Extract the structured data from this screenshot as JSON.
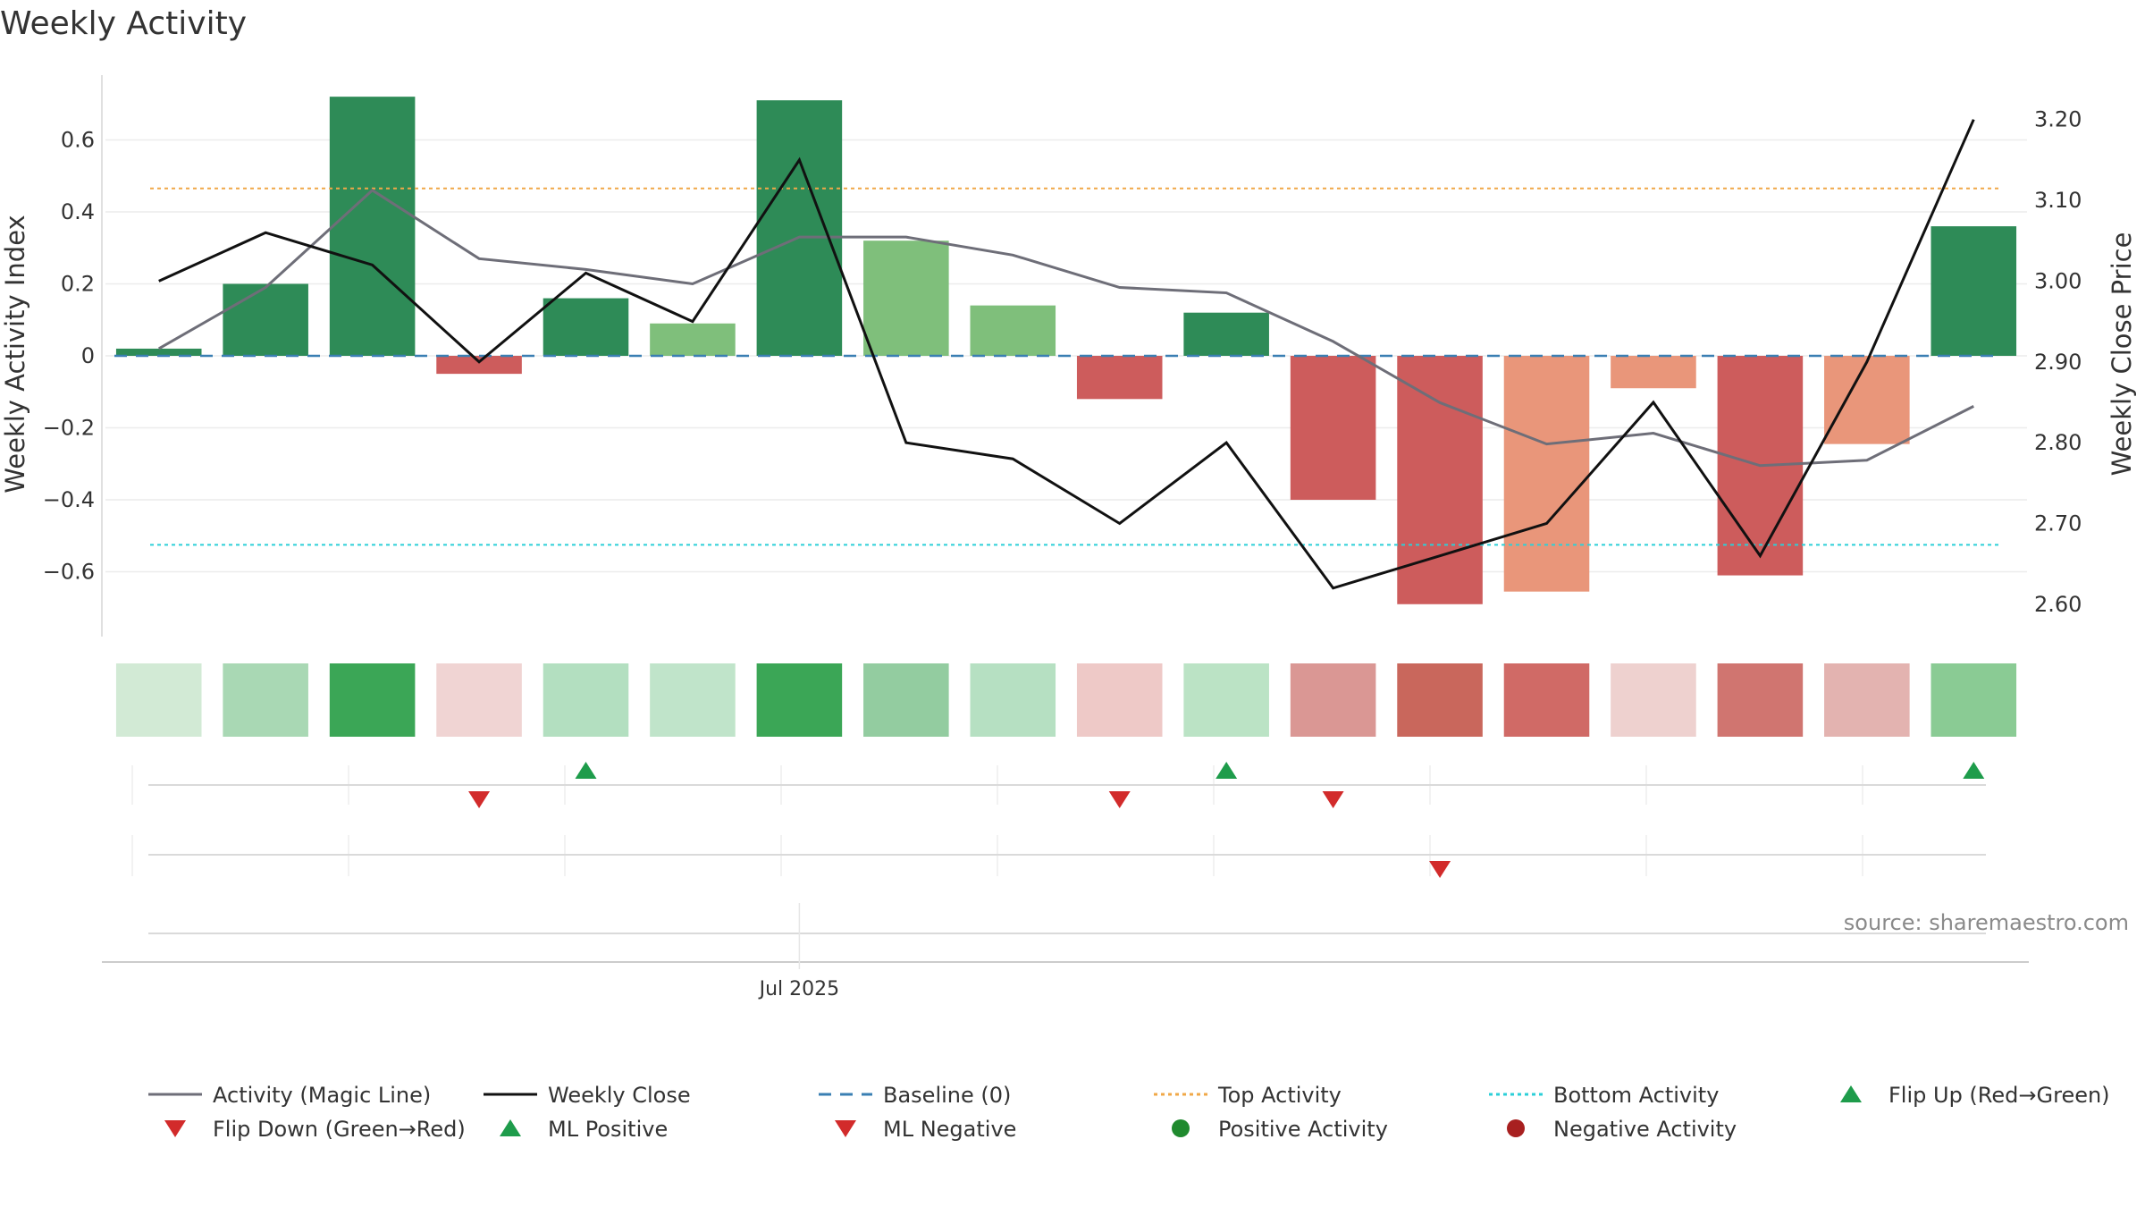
{
  "chart_data": {
    "type": "bar",
    "title": "Weekly Activity",
    "source": "source: sharemaestro.com",
    "ylabel_left": "Weekly Activity Index",
    "ylabel_right": "Weekly Close Price",
    "x_tick_label": "Jul 2025",
    "x_tick_index": 6.5,
    "ylim_left": [
      -0.78,
      0.78
    ],
    "ylim_right": [
      2.56,
      3.255
    ],
    "yticks_left": [
      {
        "v": 0.6,
        "label": "0.6"
      },
      {
        "v": 0.4,
        "label": "0.4"
      },
      {
        "v": 0.2,
        "label": "0.2"
      },
      {
        "v": 0,
        "label": "0"
      },
      {
        "v": -0.2,
        "label": "−0.2"
      },
      {
        "v": -0.4,
        "label": "−0.4"
      },
      {
        "v": -0.6,
        "label": "−0.6"
      }
    ],
    "yticks_right": [
      {
        "v": 3.2,
        "label": "3.20"
      },
      {
        "v": 3.1,
        "label": "3.10"
      },
      {
        "v": 3.0,
        "label": "3.00"
      },
      {
        "v": 2.9,
        "label": "2.90"
      },
      {
        "v": 2.8,
        "label": "2.80"
      },
      {
        "v": 2.7,
        "label": "2.70"
      },
      {
        "v": 2.6,
        "label": "2.60"
      }
    ],
    "activity": [
      0.02,
      0.2,
      0.72,
      -0.05,
      0.16,
      0.09,
      0.71,
      0.32,
      0.14,
      -0.12,
      0.12,
      -0.4,
      -0.69,
      -0.655,
      -0.09,
      -0.61,
      -0.245,
      0.36
    ],
    "bar_colors": [
      "#2e8b57",
      "#2e8b57",
      "#2e8b57",
      "#cd5c5c",
      "#2e8b57",
      "#7fbf7b",
      "#2e8b57",
      "#7fbf7b",
      "#7fbf7b",
      "#cd5c5c",
      "#2e8b57",
      "#cd5c5c",
      "#cd5c5c",
      "#e9967a",
      "#e9967a",
      "#cd5c5c",
      "#e9967a",
      "#2e8b57"
    ],
    "magic_line": [
      0.02,
      0.19,
      0.46,
      0.27,
      0.24,
      0.2,
      0.33,
      0.33,
      0.28,
      0.19,
      0.175,
      0.04,
      -0.13,
      -0.245,
      -0.215,
      -0.305,
      -0.29,
      -0.14
    ],
    "weekly_close": [
      3.0,
      3.06,
      3.02,
      2.9,
      3.01,
      2.95,
      3.15,
      2.8,
      2.78,
      2.7,
      2.8,
      2.62,
      2.66,
      2.7,
      2.85,
      2.66,
      2.9,
      3.2
    ],
    "baseline": 0,
    "top_activity": 0.465,
    "bottom_activity": -0.525,
    "heat_colors": [
      "#d2ead5",
      "#a9d8b4",
      "#3ba656",
      "#f0d4d3",
      "#b3dfc0",
      "#c0e4ca",
      "#3ba656",
      "#93cca0",
      "#b6e0c2",
      "#eec9c7",
      "#bbe3c5",
      "#da9794",
      "#c9675c",
      "#d06a66",
      "#eed1cf",
      "#d07570",
      "#e3b3b0",
      "#8acb94"
    ],
    "flip_up": [
      4,
      10,
      17
    ],
    "flip_down": [
      3,
      9,
      11
    ],
    "ml_negative": [
      12
    ],
    "colors": {
      "magic_line": "#6e6e78",
      "weekly_close": "#111111",
      "baseline": "#3a7fb3",
      "top": "#f0a848",
      "bottom": "#2ccfd8",
      "up": "#1e9c4b",
      "down": "#d22b2b",
      "positive": "#1f8a2e",
      "negative": "#a82020"
    },
    "legend": [
      {
        "label": "Activity (Magic Line)",
        "kind": "line",
        "color": "#6e6e78",
        "dash": ""
      },
      {
        "label": "Weekly Close",
        "kind": "line",
        "color": "#111111",
        "dash": ""
      },
      {
        "label": "Baseline (0)",
        "kind": "line",
        "color": "#3a7fb3",
        "dash": "14,10"
      },
      {
        "label": "Top Activity",
        "kind": "line",
        "color": "#f0a848",
        "dash": "4,4"
      },
      {
        "label": "Bottom Activity",
        "kind": "line",
        "color": "#2ccfd8",
        "dash": "4,4"
      },
      {
        "label": "Flip Up (Red→Green)",
        "kind": "tri-up",
        "color": "#1e9c4b"
      },
      {
        "label": "Flip Down (Green→Red)",
        "kind": "tri-down",
        "color": "#d22b2b"
      },
      {
        "label": "ML Positive",
        "kind": "tri-up",
        "color": "#1e9c4b"
      },
      {
        "label": "ML Negative",
        "kind": "tri-down",
        "color": "#d22b2b"
      },
      {
        "label": "Positive Activity",
        "kind": "dot",
        "color": "#1f8a2e"
      },
      {
        "label": "Negative Activity",
        "kind": "dot",
        "color": "#a82020"
      }
    ]
  }
}
